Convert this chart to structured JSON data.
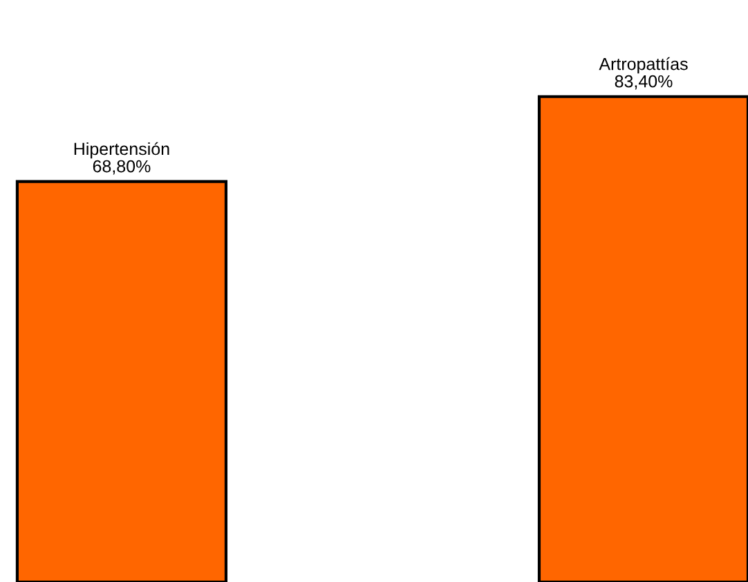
{
  "chart_data": {
    "type": "bar",
    "categories": [
      "Hipertensión",
      "Artropattías"
    ],
    "values": [
      68.8,
      83.4
    ],
    "value_labels": [
      "68,80%",
      "83,40%"
    ],
    "color": "#ff6600",
    "ylim": [
      0,
      100
    ]
  }
}
